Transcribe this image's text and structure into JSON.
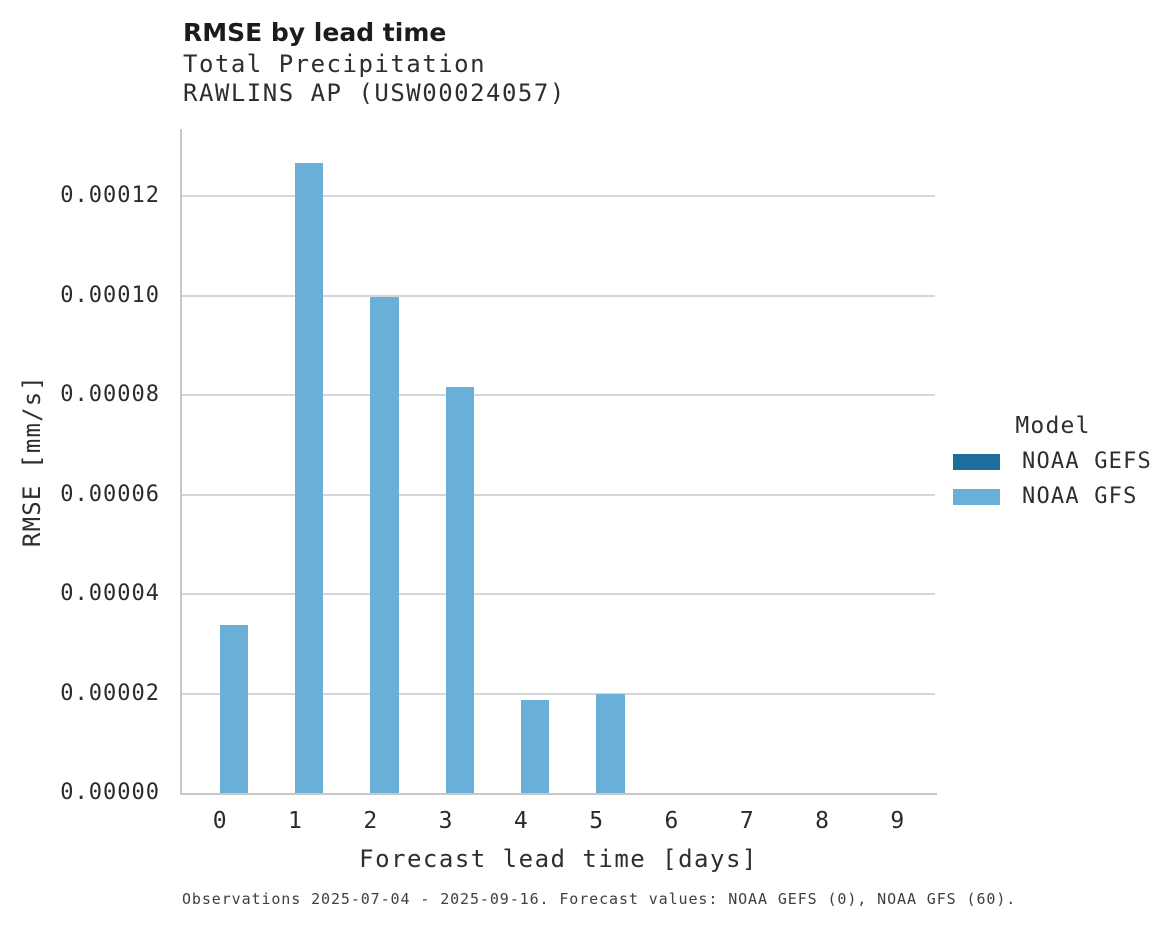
{
  "header": {
    "title": "RMSE by lead time",
    "subtitle_variable": "Total Precipitation",
    "subtitle_station": "RAWLINS AP (USW00024057)"
  },
  "chart_data": {
    "type": "bar",
    "title": "RMSE by lead time",
    "subtitle": [
      "Total Precipitation",
      "RAWLINS AP (USW00024057)"
    ],
    "xlabel": "Forecast lead time [days]",
    "ylabel": "RMSE [mm/s]",
    "categories": [
      "0",
      "1",
      "2",
      "3",
      "4",
      "5",
      "6",
      "7",
      "8",
      "9"
    ],
    "series": [
      {
        "name": "NOAA GEFS",
        "color": "#1d6e9c",
        "values": [
          0,
          0,
          0,
          0,
          0,
          0,
          0,
          0,
          0,
          0
        ]
      },
      {
        "name": "NOAA GFS",
        "color": "#6aafd8",
        "values": [
          3.37e-05,
          0.0001266,
          9.97e-05,
          8.16e-05,
          1.87e-05,
          1.99e-05,
          0,
          0,
          0,
          0
        ]
      }
    ],
    "ylim": [
      0,
      0.0001335
    ],
    "yticks": [
      0,
      2e-05,
      4e-05,
      6e-05,
      8e-05,
      0.0001,
      0.00012
    ],
    "ytick_labels": [
      "0.00000",
      "0.00002",
      "0.00004",
      "0.00006",
      "0.00008",
      "0.00010",
      "0.00012"
    ],
    "grid": "horizontal",
    "legend": {
      "title": "Model",
      "position": "right"
    }
  },
  "colors": {
    "noaa_gefs": "#1d6e9c",
    "noaa_gfs": "#6aafd8",
    "gridline": "#d6d6d6",
    "spine": "#c7c7c7"
  },
  "footer": {
    "note": "Observations 2025-07-04 - 2025-09-16. Forecast values: NOAA GEFS (0), NOAA GFS (60)."
  }
}
